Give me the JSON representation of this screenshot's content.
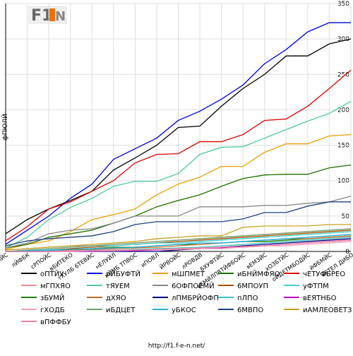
{
  "chart_data": {
    "type": "line",
    "ylabel": "фПЮЛЙ",
    "footer": "http://f1.f-e-n.net/",
    "ylim": [
      0,
      350
    ],
    "yticks": [
      0,
      50,
      100,
      150,
      200,
      250,
      300,
      350
    ],
    "grid": true,
    "categories": [
      "бЧУФТБМЙС",
      "лЙФБК",
      "сРПОЙС",
      "вБИТЕКО",
      "тХУЛБ 6ТЕВЙС",
      "нЕЛУЙЛ",
      "нЙМБ ТПВОС",
      "иПОВЛ",
      "ЙРВОЙС",
      "лРОВДВ",
      "6ХУФТЙС",
      "вЕМЙЛПВТЙФБОЙС",
      "вЕМЗЙС",
      "хОЗБТЙС",
      "оЙДЕТМБОДЙС",
      "йФБМЙС",
      "вЕТЕЛ ДИБО"
    ],
    "series": [
      {
        "name": "оПТЙУ",
        "color": "#000000",
        "values": [
          25,
          45,
          60,
          72,
          85,
          115,
          132,
          150,
          175,
          177,
          205,
          230,
          250,
          276,
          276,
          293,
          300
        ]
      },
      {
        "name": "рЙБУФТЙ",
        "color": "#0000dd",
        "values": [
          10,
          30,
          50,
          75,
          95,
          130,
          145,
          160,
          185,
          198,
          215,
          235,
          265,
          285,
          310,
          323,
          323
        ]
      },
      {
        "name": "мШПМЕТ",
        "color": "#e8a000",
        "values": [
          3,
          10,
          15,
          28,
          45,
          52,
          60,
          80,
          95,
          105,
          120,
          120,
          140,
          152,
          152,
          163,
          165
        ]
      },
      {
        "name": "иБНЙМФЯО",
        "color": "#1e6e00",
        "values": [
          5,
          10,
          20,
          25,
          30,
          40,
          50,
          63,
          72,
          80,
          92,
          103,
          108,
          109,
          109,
          118,
          122
        ]
      },
      {
        "name": "чЕТУФБРЕО",
        "color": "#e00000",
        "values": [
          15,
          35,
          60,
          70,
          85,
          100,
          125,
          137,
          138,
          155,
          155,
          165,
          185,
          187,
          205,
          230,
          256
        ]
      },
      {
        "name": "мГПХЯО",
        "color": "#e89090",
        "values": [
          2,
          4,
          6,
          8,
          8,
          10,
          12,
          14,
          16,
          18,
          20,
          22,
          24,
          26,
          28,
          30,
          32
        ]
      },
      {
        "name": "тЯУЕМ",
        "color": "#50c8a0",
        "values": [
          5,
          20,
          45,
          62,
          75,
          92,
          99,
          99,
          110,
          137,
          147,
          148,
          160,
          172,
          184,
          195,
          212
        ]
      },
      {
        "name": "6ОФПОЕМЙ",
        "color": "#888888",
        "values": [
          5,
          12,
          25,
          30,
          32,
          40,
          50,
          50,
          50,
          63,
          63,
          63,
          65,
          65,
          68,
          70,
          78
        ]
      },
      {
        "name": "6МПОУП",
        "color": "#a05000",
        "values": [
          0,
          0,
          2,
          4,
          6,
          8,
          10,
          12,
          14,
          16,
          18,
          20,
          22,
          24,
          26,
          28,
          30
        ]
      },
      {
        "name": "уФТПМ",
        "color": "#40d0d0",
        "values": [
          0,
          2,
          4,
          6,
          8,
          8,
          10,
          12,
          12,
          14,
          16,
          18,
          20,
          22,
          24,
          26,
          28
        ]
      },
      {
        "name": "зБУМЙ",
        "color": "#208000",
        "values": [
          0,
          0,
          0,
          2,
          4,
          6,
          6,
          8,
          10,
          10,
          12,
          14,
          14,
          16,
          18,
          20,
          22
        ]
      },
      {
        "name": "дХЯО",
        "color": "#c07030",
        "values": [
          0,
          1,
          1,
          2,
          3,
          4,
          5,
          6,
          8,
          10,
          12,
          14,
          16,
          18,
          18,
          20,
          22
        ]
      },
      {
        "name": "лПМБРЙОФП",
        "color": "#000080",
        "values": [
          0,
          0,
          0,
          0,
          0,
          0,
          0,
          0,
          2,
          4,
          6,
          8,
          10,
          12,
          14,
          16,
          18
        ]
      },
      {
        "name": "пЛПО",
        "color": "#40c0c0",
        "values": [
          0,
          0,
          1,
          1,
          2,
          2,
          3,
          4,
          5,
          6,
          8,
          10,
          12,
          14,
          16,
          18,
          20
        ]
      },
      {
        "name": "вЕЯТНБО",
        "color": "#c000c0",
        "values": [
          0,
          0,
          0,
          0,
          0,
          1,
          1,
          2,
          3,
          4,
          5,
          6,
          8,
          10,
          12,
          14,
          16
        ]
      },
      {
        "name": "гХОДБ",
        "color": "#f0a0c0",
        "values": [
          0,
          0,
          0,
          0,
          1,
          1,
          2,
          2,
          3,
          4,
          4,
          6,
          8,
          8,
          10,
          12,
          14
        ]
      },
      {
        "name": "иБДЦЕТ",
        "color": "#70a070",
        "values": [
          0,
          2,
          4,
          6,
          8,
          10,
          12,
          14,
          16,
          18,
          20,
          22,
          24,
          26,
          28,
          30,
          32
        ]
      },
      {
        "name": "уБКОС",
        "color": "#20b0e0",
        "values": [
          0,
          1,
          2,
          3,
          4,
          5,
          6,
          8,
          10,
          12,
          12,
          14,
          16,
          18,
          20,
          22,
          24
        ]
      },
      {
        "name": "6МВПО",
        "color": "#204080",
        "values": [
          8,
          15,
          18,
          20,
          22,
          28,
          38,
          42,
          42,
          42,
          42,
          46,
          55,
          55,
          64,
          70,
          70
        ]
      },
      {
        "name": "иАМЛЕОВЕТЗ",
        "color": "#c8a020",
        "values": [
          2,
          4,
          6,
          8,
          10,
          12,
          14,
          18,
          20,
          22,
          22,
          34,
          36,
          36,
          36,
          38,
          38
        ]
      },
      {
        "name": "вПФФБУ",
        "color": "#f080a0",
        "values": [
          0,
          0,
          0,
          1,
          1,
          2,
          2,
          3,
          4,
          5,
          6,
          7,
          8,
          10,
          12,
          14,
          16
        ]
      }
    ]
  }
}
